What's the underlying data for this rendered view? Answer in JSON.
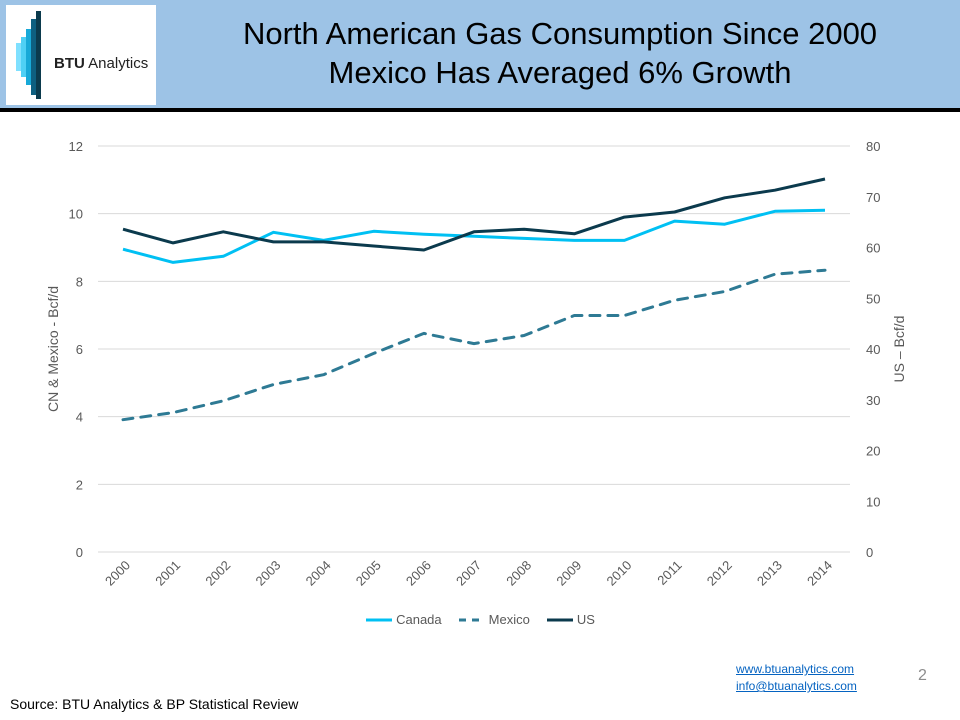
{
  "header": {
    "logo_bold": "BTU",
    "logo_rest": " Analytics",
    "title_line1": "North American Gas Consumption Since 2000",
    "title_line2": "Mexico Has Averaged 6% Growth",
    "band_color": "#9dc3e6"
  },
  "chart_data": {
    "type": "line",
    "title": "North American Gas Consumption Since 2000",
    "xlabel": "",
    "ylabel": "CN & Mexico - Bcf/d",
    "y2label": "US – Bcf/d",
    "categories": [
      "2000",
      "2001",
      "2002",
      "2003",
      "2004",
      "2005",
      "2006",
      "2007",
      "2008",
      "2009",
      "2010",
      "2011",
      "2012",
      "2013",
      "2014"
    ],
    "ylim": [
      0,
      12
    ],
    "y2lim": [
      0,
      80
    ],
    "yticks": [
      "0",
      "2",
      "4",
      "6",
      "8",
      "10",
      "12"
    ],
    "y2ticks": [
      "0",
      "10",
      "20",
      "30",
      "40",
      "50",
      "60",
      "70",
      "80"
    ],
    "grid": true,
    "legend_position": "bottom",
    "series": [
      {
        "name": "Canada",
        "axis": "left",
        "style": "solid",
        "color": "#00c0f3",
        "values": [
          8.95,
          8.56,
          8.74,
          9.45,
          9.21,
          9.48,
          9.39,
          9.33,
          9.27,
          9.21,
          9.21,
          9.78,
          9.69,
          10.07,
          10.1
        ]
      },
      {
        "name": "Mexico",
        "axis": "left",
        "style": "dashed",
        "color": "#2e7a94",
        "values": [
          3.91,
          4.12,
          4.47,
          4.95,
          5.24,
          5.87,
          6.46,
          6.16,
          6.4,
          6.99,
          6.99,
          7.44,
          7.7,
          8.21,
          8.33
        ]
      },
      {
        "name": "US",
        "axis": "right",
        "style": "solid",
        "color": "#0b3a4d",
        "values": [
          63.6,
          60.9,
          63.1,
          61.1,
          61.1,
          60.3,
          59.5,
          63.1,
          63.6,
          62.7,
          66.0,
          67.0,
          69.8,
          71.3,
          73.5
        ]
      }
    ]
  },
  "footer": {
    "website": "www.btuanalytics.com",
    "email": "info@btuanalytics.com",
    "page_number": "2",
    "source": "Source:  BTU Analytics & BP Statistical Review"
  }
}
